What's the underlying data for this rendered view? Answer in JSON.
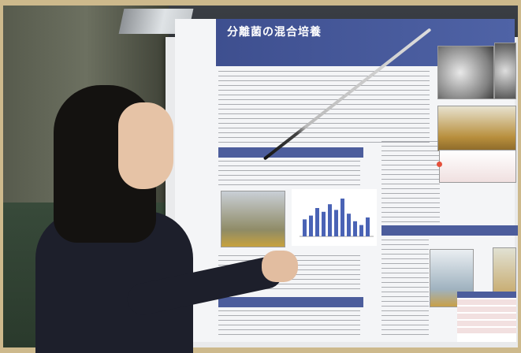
{
  "scene": {
    "poster_title": "分離菌の混合培養"
  },
  "chart_bars": [
    18,
    22,
    30,
    26,
    34,
    28,
    40,
    24,
    16,
    12,
    20
  ],
  "colors": {
    "border": "#cdb98c",
    "poster_header": "#3e4f8f",
    "section_heading": "#4c5d9c",
    "pointer_tip": "#e5503b",
    "student_jacket": "#1d1f2b"
  }
}
